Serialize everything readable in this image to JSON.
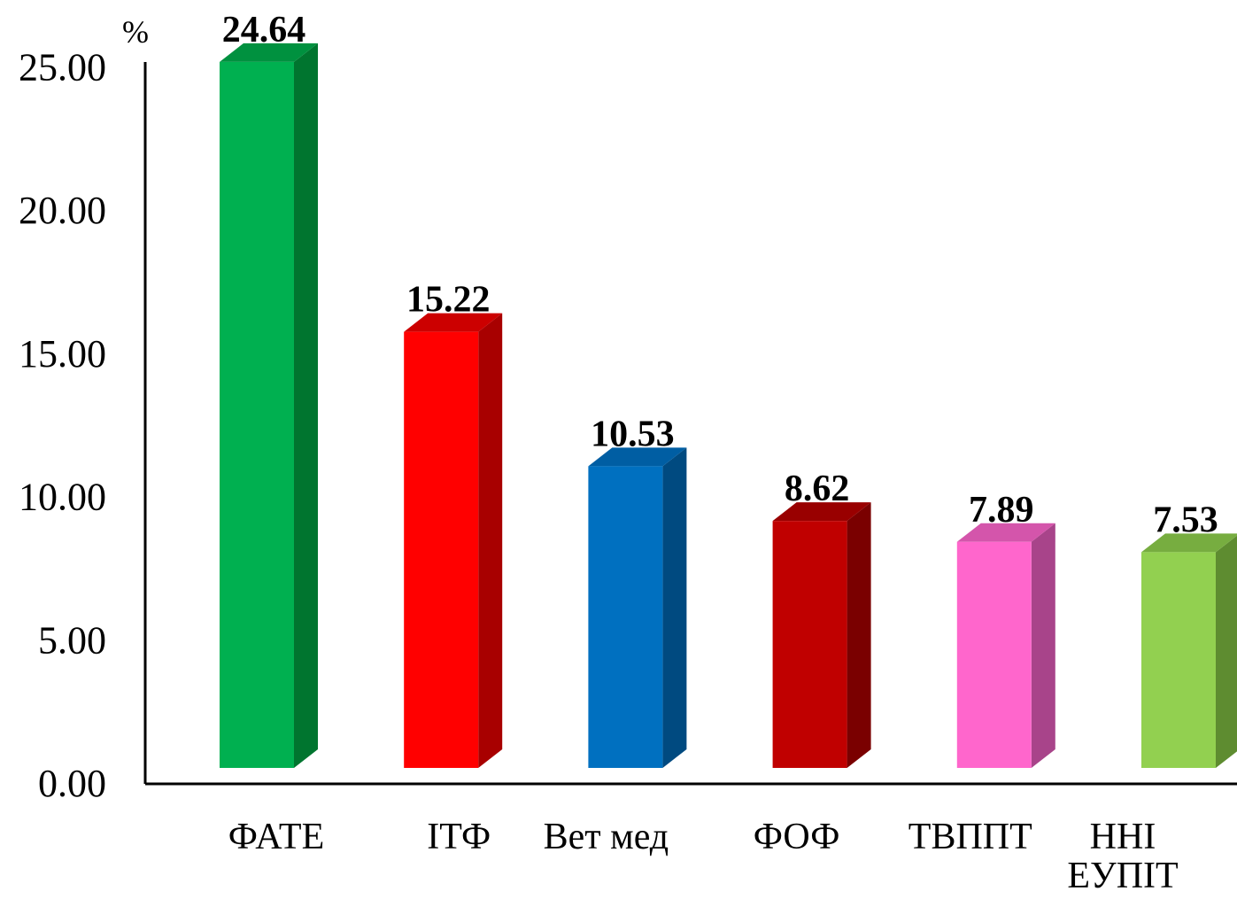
{
  "chart_data": {
    "type": "bar",
    "ylabel": "%",
    "ylim": [
      0,
      25
    ],
    "yticks": [
      "0.00",
      "5.00",
      "10.00",
      "15.00",
      "20.00",
      "25.00"
    ],
    "grid": false,
    "categories": [
      [
        "ФАТЕ"
      ],
      [
        "ІТФ"
      ],
      [
        "Вет мед"
      ],
      [
        "ФОФ"
      ],
      [
        "ТВППТ"
      ],
      [
        "ННІ",
        "ЕУПІТ"
      ]
    ],
    "values": [
      24.64,
      15.22,
      10.53,
      8.62,
      7.89,
      7.53
    ],
    "value_labels": [
      "24.64",
      "15.22",
      "10.53",
      "8.62",
      "7.89",
      "7.53"
    ],
    "colors": [
      {
        "front": "#00b050",
        "side": "#00752f",
        "top": "#00913f"
      },
      {
        "front": "#ff0000",
        "side": "#a80000",
        "top": "#cc0000"
      },
      {
        "front": "#0070c0",
        "side": "#004a80",
        "top": "#005ea3"
      },
      {
        "front": "#c00000",
        "side": "#7a0000",
        "top": "#990000"
      },
      {
        "front": "#ff66cc",
        "side": "#a8448a",
        "top": "#d455ab"
      },
      {
        "front": "#92d050",
        "side": "#5e8c30",
        "top": "#77ad40"
      }
    ]
  }
}
